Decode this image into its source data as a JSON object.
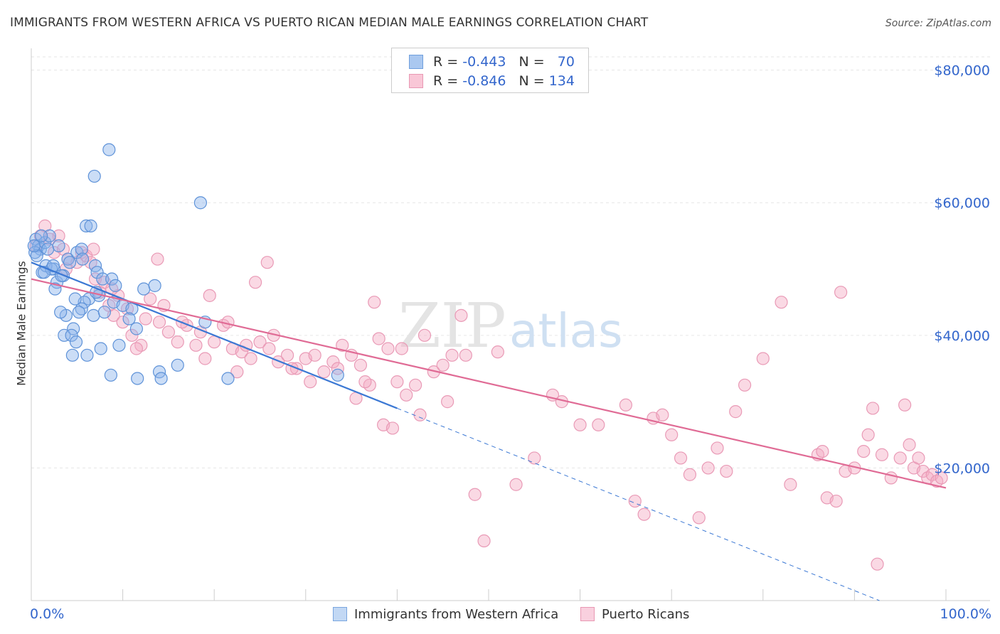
{
  "title": "IMMIGRANTS FROM WESTERN AFRICA VS PUERTO RICAN MEDIAN MALE EARNINGS CORRELATION CHART",
  "source": "Source: ZipAtlas.com",
  "watermark": {
    "zip": "ZIP",
    "atlas": "atlas"
  },
  "legend": {
    "r_label": "R =",
    "n_label": "N =",
    "series": [
      {
        "r": "-0.443",
        "n": "70"
      },
      {
        "r": "-0.846",
        "n": "134"
      }
    ]
  },
  "colors": {
    "blue": "#3b78d4",
    "blue_fill": "#aac8f0",
    "pink": "#e06b95",
    "pink_fill": "#f4b3c8",
    "axis_text": "#3366cc"
  },
  "chart_data": {
    "type": "scatter",
    "title": "IMMIGRANTS FROM WESTERN AFRICA VS PUERTO RICAN MEDIAN MALE EARNINGS CORRELATION CHART",
    "xlabel": "",
    "ylabel": "Median Male Earnings",
    "xlim": [
      0,
      100
    ],
    "ylim": [
      0,
      82000
    ],
    "x_tick_labels": [
      "0.0%",
      "100.0%"
    ],
    "y_ticks": [
      20000,
      40000,
      60000,
      80000
    ],
    "y_tick_labels": [
      "$20,000",
      "$40,000",
      "$60,000",
      "$80,000"
    ],
    "grid": true,
    "series": [
      {
        "name": "Immigrants from Western Africa",
        "color": "blue",
        "trend": {
          "x0": 0,
          "y0": 51000,
          "x1": 40,
          "y1": 29000,
          "dash_to_x": 100,
          "dash_to_y": -4000
        },
        "points": [
          [
            0.5,
            54500
          ],
          [
            0.8,
            53500
          ],
          [
            1.0,
            53000
          ],
          [
            0.4,
            52500
          ],
          [
            1.5,
            54000
          ],
          [
            2.0,
            55000
          ],
          [
            1.8,
            53000
          ],
          [
            1.2,
            49500
          ],
          [
            2.5,
            50000
          ],
          [
            1.6,
            50500
          ],
          [
            2.2,
            50000
          ],
          [
            3.0,
            53500
          ],
          [
            2.8,
            48000
          ],
          [
            3.5,
            49000
          ],
          [
            2.6,
            47000
          ],
          [
            4.0,
            51500
          ],
          [
            4.2,
            51000
          ],
          [
            5.0,
            52500
          ],
          [
            5.5,
            53000
          ],
          [
            6.0,
            56500
          ],
          [
            6.5,
            56500
          ],
          [
            7.0,
            50500
          ],
          [
            7.2,
            49500
          ],
          [
            7.8,
            48500
          ],
          [
            8.5,
            68000
          ],
          [
            8.8,
            48500
          ],
          [
            9.2,
            47500
          ],
          [
            6.3,
            45500
          ],
          [
            5.8,
            45000
          ],
          [
            5.5,
            44000
          ],
          [
            5.2,
            43500
          ],
          [
            4.6,
            41000
          ],
          [
            4.8,
            45500
          ],
          [
            3.8,
            43000
          ],
          [
            3.2,
            43500
          ],
          [
            3.6,
            40000
          ],
          [
            4.4,
            40000
          ],
          [
            4.9,
            39000
          ],
          [
            7.4,
            46000
          ],
          [
            9.0,
            45000
          ],
          [
            6.8,
            43000
          ],
          [
            7.6,
            38000
          ],
          [
            10.0,
            44500
          ],
          [
            11.0,
            44000
          ],
          [
            12.3,
            47000
          ],
          [
            13.5,
            47500
          ],
          [
            11.5,
            41000
          ],
          [
            18.5,
            60000
          ],
          [
            19.0,
            42000
          ],
          [
            8.7,
            34000
          ],
          [
            11.6,
            33500
          ],
          [
            14.0,
            34500
          ],
          [
            14.2,
            33500
          ],
          [
            16.0,
            35500
          ],
          [
            21.5,
            33500
          ],
          [
            6.9,
            64000
          ],
          [
            6.1,
            37000
          ],
          [
            4.5,
            37000
          ],
          [
            9.6,
            38500
          ],
          [
            8.0,
            43500
          ],
          [
            10.7,
            42500
          ],
          [
            2.4,
            50500
          ],
          [
            1.1,
            55000
          ],
          [
            0.6,
            52000
          ],
          [
            3.3,
            49000
          ],
          [
            1.4,
            49500
          ],
          [
            7.1,
            46500
          ],
          [
            5.6,
            51500
          ],
          [
            33.5,
            34000
          ],
          [
            0.3,
            53500
          ]
        ]
      },
      {
        "name": "Puerto Ricans",
        "color": "pink",
        "trend": {
          "x0": 0,
          "y0": 48500,
          "x1": 100,
          "y1": 17000
        },
        "points": [
          [
            0.5,
            53500
          ],
          [
            1.5,
            56500
          ],
          [
            1.0,
            55000
          ],
          [
            2.5,
            52500
          ],
          [
            3.0,
            55000
          ],
          [
            3.5,
            53000
          ],
          [
            4.0,
            51500
          ],
          [
            5.0,
            51000
          ],
          [
            5.5,
            52500
          ],
          [
            6.0,
            52000
          ],
          [
            6.5,
            51000
          ],
          [
            7.0,
            48500
          ],
          [
            7.5,
            46500
          ],
          [
            8.0,
            48000
          ],
          [
            8.5,
            44500
          ],
          [
            9.0,
            43000
          ],
          [
            9.5,
            46000
          ],
          [
            10.0,
            42000
          ],
          [
            11.0,
            40000
          ],
          [
            12.0,
            38500
          ],
          [
            12.5,
            42500
          ],
          [
            13.0,
            45500
          ],
          [
            14.0,
            42000
          ],
          [
            15.0,
            40500
          ],
          [
            16.0,
            39000
          ],
          [
            17.0,
            41500
          ],
          [
            18.0,
            38500
          ],
          [
            19.0,
            36500
          ],
          [
            20.0,
            39000
          ],
          [
            21.0,
            41500
          ],
          [
            22.0,
            38000
          ],
          [
            23.0,
            37500
          ],
          [
            24.0,
            36500
          ],
          [
            25.0,
            39000
          ],
          [
            26.0,
            38000
          ],
          [
            27.0,
            36000
          ],
          [
            28.0,
            37000
          ],
          [
            29.0,
            35000
          ],
          [
            30.0,
            36500
          ],
          [
            31.0,
            37000
          ],
          [
            32.0,
            34500
          ],
          [
            33.0,
            36000
          ],
          [
            34.0,
            38500
          ],
          [
            35.0,
            37000
          ],
          [
            36.0,
            35500
          ],
          [
            37.0,
            32500
          ],
          [
            38.0,
            39500
          ],
          [
            39.0,
            38000
          ],
          [
            40.0,
            33000
          ],
          [
            41.0,
            31000
          ],
          [
            42.0,
            32500
          ],
          [
            43.0,
            40000
          ],
          [
            44.0,
            34500
          ],
          [
            45.0,
            35500
          ],
          [
            46.0,
            37000
          ],
          [
            47.0,
            43000
          ],
          [
            13.8,
            51500
          ],
          [
            24.5,
            48000
          ],
          [
            25.8,
            51000
          ],
          [
            37.5,
            45000
          ],
          [
            40.5,
            38000
          ],
          [
            47.5,
            37000
          ],
          [
            48.5,
            16000
          ],
          [
            49.5,
            9000
          ],
          [
            51.0,
            37500
          ],
          [
            53.0,
            17500
          ],
          [
            57.0,
            31000
          ],
          [
            65.0,
            29500
          ],
          [
            66.0,
            15000
          ],
          [
            67.0,
            13000
          ],
          [
            68.0,
            27500
          ],
          [
            69.0,
            28000
          ],
          [
            71.0,
            21500
          ],
          [
            72.0,
            19000
          ],
          [
            73.0,
            12500
          ],
          [
            74.0,
            20000
          ],
          [
            76.0,
            19500
          ],
          [
            78.0,
            32500
          ],
          [
            80.0,
            36500
          ],
          [
            82.0,
            45000
          ],
          [
            83.0,
            17500
          ],
          [
            86.0,
            22000
          ],
          [
            87.0,
            15500
          ],
          [
            88.0,
            15000
          ],
          [
            88.5,
            46500
          ],
          [
            89.0,
            19500
          ],
          [
            90.0,
            20000
          ],
          [
            91.0,
            22500
          ],
          [
            91.5,
            25000
          ],
          [
            92.0,
            29000
          ],
          [
            93.0,
            22000
          ],
          [
            94.0,
            18500
          ],
          [
            95.0,
            21500
          ],
          [
            95.5,
            29500
          ],
          [
            96.0,
            23500
          ],
          [
            96.5,
            20000
          ],
          [
            97.0,
            21500
          ],
          [
            97.5,
            19500
          ],
          [
            98.0,
            18500
          ],
          [
            98.5,
            19000
          ],
          [
            99.0,
            18000
          ],
          [
            99.5,
            18500
          ],
          [
            92.5,
            5500
          ],
          [
            86.5,
            22500
          ],
          [
            77.0,
            28500
          ],
          [
            60.0,
            26500
          ],
          [
            55.0,
            21500
          ],
          [
            2.0,
            54500
          ],
          [
            3.8,
            50000
          ],
          [
            6.8,
            53000
          ],
          [
            8.8,
            47000
          ],
          [
            10.5,
            44000
          ],
          [
            11.5,
            38000
          ],
          [
            14.5,
            44500
          ],
          [
            16.5,
            42000
          ],
          [
            18.5,
            40500
          ],
          [
            19.5,
            46000
          ],
          [
            21.5,
            42000
          ],
          [
            22.5,
            34500
          ],
          [
            23.5,
            38500
          ],
          [
            26.5,
            40000
          ],
          [
            28.5,
            35000
          ],
          [
            30.5,
            33000
          ],
          [
            33.5,
            35000
          ],
          [
            35.5,
            30500
          ],
          [
            36.5,
            33000
          ],
          [
            38.5,
            26500
          ],
          [
            39.5,
            26000
          ],
          [
            42.5,
            28000
          ],
          [
            45.5,
            30000
          ],
          [
            58.0,
            30000
          ],
          [
            62.0,
            26500
          ],
          [
            70.0,
            25000
          ],
          [
            75.0,
            23000
          ]
        ]
      }
    ]
  },
  "bottom_legend": [
    "Immigrants from Western Africa",
    "Puerto Ricans"
  ]
}
